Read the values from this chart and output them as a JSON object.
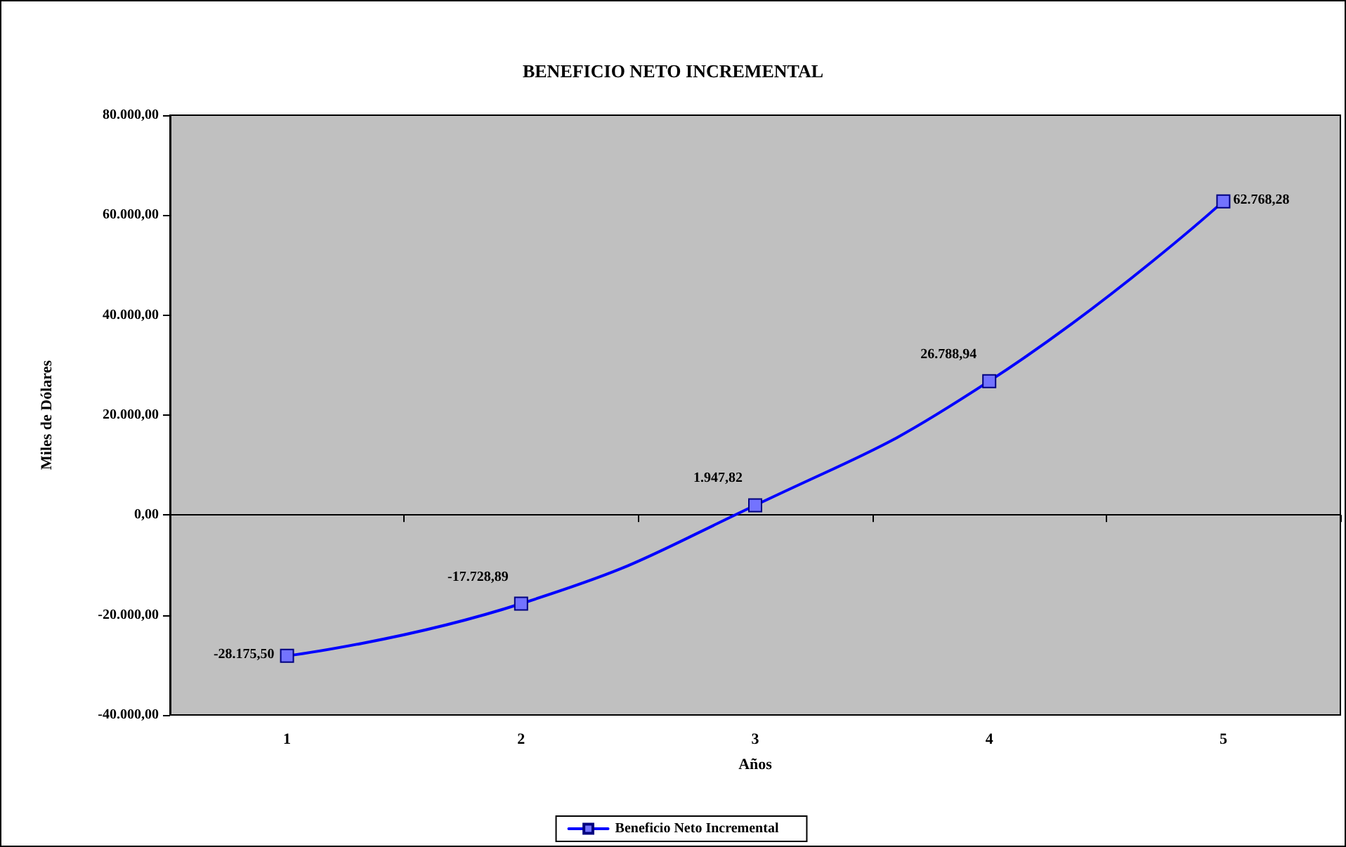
{
  "chart_data": {
    "type": "line",
    "title": "BENEFICIO NETO INCREMENTAL",
    "xlabel": "Años",
    "ylabel": "Miles de Dólares",
    "categories": [
      "1",
      "2",
      "3",
      "4",
      "5"
    ],
    "series": [
      {
        "name": "Beneficio Neto Incremental",
        "color": "#0000ff",
        "values": [
          -28175.5,
          -17728.89,
          1947.82,
          26788.94,
          62768.28
        ],
        "value_labels": [
          "-28.175,50",
          "-17.728,89",
          "1.947,82",
          "26.788,94",
          "62.768,28"
        ]
      }
    ],
    "ylim": [
      -40000,
      80000
    ],
    "yticks": [
      {
        "value": -40000,
        "label": "-40.000,00"
      },
      {
        "value": -20000,
        "label": "-20.000,00"
      },
      {
        "value": 0,
        "label": "0,00"
      },
      {
        "value": 20000,
        "label": "20.000,00"
      },
      {
        "value": 40000,
        "label": "40.000,00"
      },
      {
        "value": 60000,
        "label": "60.000,00"
      },
      {
        "value": 80000,
        "label": "80.000,00"
      }
    ],
    "legend": "bottom",
    "marker": "square",
    "line_style": "solid"
  }
}
